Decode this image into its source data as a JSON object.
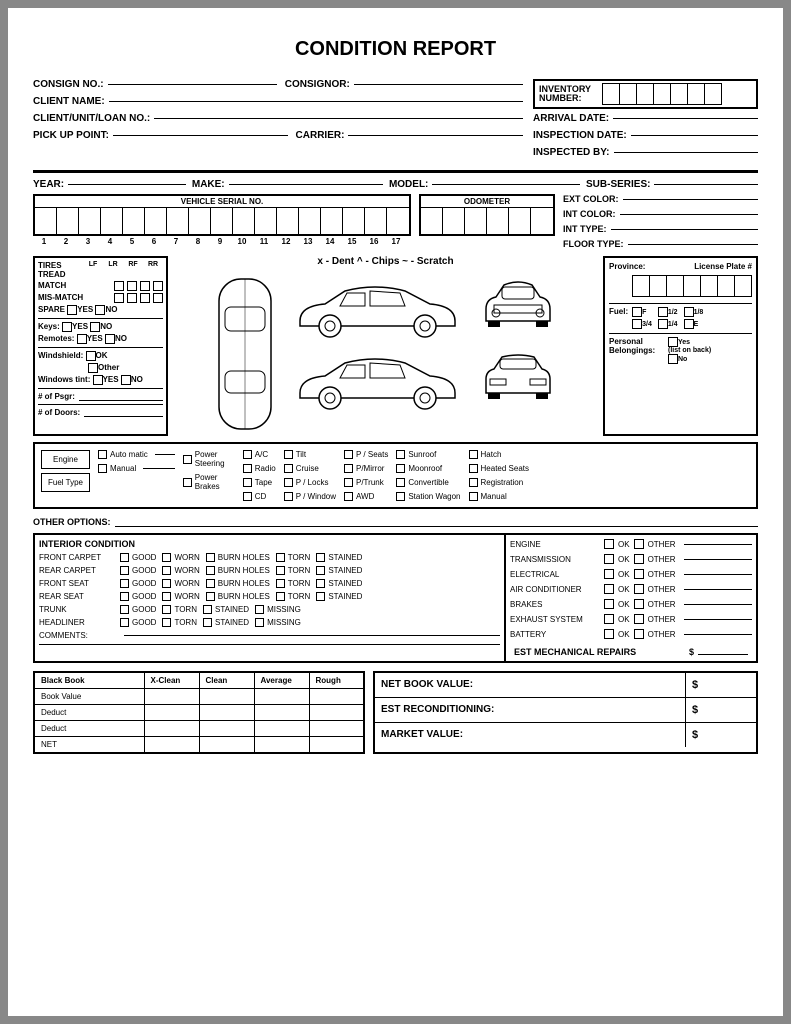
{
  "title": "CONDITION REPORT",
  "header_left": {
    "consign_no": "CONSIGN NO.:",
    "consignor": "CONSIGNOR:",
    "client_name": "CLIENT NAME:",
    "client_unit": "CLIENT/UNIT/LOAN NO.:",
    "pickup": "PICK UP POINT:",
    "carrier": "CARRIER:"
  },
  "header_right": {
    "inventory": "INVENTORY NUMBER:",
    "arrival": "ARRIVAL DATE:",
    "inspection": "INSPECTION DATE:",
    "inspected_by": "INSPECTED BY:",
    "inv_cells": 7
  },
  "vehicle": {
    "year": "YEAR:",
    "make": "MAKE:",
    "model": "MODEL:",
    "subseries": "SUB-SERIES:",
    "serial_label": "VEHICLE SERIAL NO.",
    "serial_count": 17,
    "odometer_label": "ODOMETER",
    "odometer_count": 6,
    "ext_color": "EXT COLOR:",
    "int_color": "INT COLOR:",
    "int_type": "INT TYPE:",
    "floor_type": "FLOOR TYPE:"
  },
  "tires": {
    "title": "TIRES",
    "cols": [
      "LF",
      "LR",
      "RF",
      "RR"
    ],
    "tread": "TREAD",
    "match": "MATCH",
    "mismatch": "MIS-MATCH",
    "spare": "SPARE",
    "yes": "YES",
    "no": "NO",
    "keys": "Keys:",
    "remotes": "Remotes:",
    "windshield": "Windshield:",
    "ok": "OK",
    "other": "Other",
    "tint": "Windows tint:",
    "psgr": "# of Psgr:",
    "doors": "# of Doors:"
  },
  "legend": "x - Dent    ^ - Chips    ~ - Scratch",
  "plate": {
    "province": "Province:",
    "license": "License Plate #",
    "plate_cells": 7,
    "fuel": "Fuel:",
    "fuel_opts": [
      "F",
      "1/2",
      "1/8",
      "3/4",
      "1/4",
      "E"
    ],
    "belongings": "Personal Belongings:",
    "yes": "Yes",
    "list": "(list on back)",
    "no": "No"
  },
  "options_box": {
    "engine": "Engine",
    "fuel_type": "Fuel Type",
    "auto": "Auto matic",
    "manual": "Manual",
    "ps": "Power Steering",
    "pb": "Power Brakes",
    "col1": [
      "A/C",
      "Radio",
      "Tape",
      "CD"
    ],
    "col2": [
      "Tilt",
      "Cruise",
      "P / Locks",
      "P / Window"
    ],
    "col3": [
      "P / Seats",
      "P/Mirror",
      "P/Trunk",
      "AWD"
    ],
    "col4": [
      "Sunroof",
      "Moonroof",
      "Convertible",
      "Station Wagon"
    ],
    "col5": [
      "Hatch",
      "Heated Seats",
      "Registration",
      "Manual"
    ]
  },
  "other_options": "OTHER OPTIONS:",
  "interior": {
    "title": "INTERIOR CONDITION",
    "rows": [
      {
        "lbl": "FRONT CARPET",
        "opts": [
          "GOOD",
          "WORN",
          "BURN HOLES",
          "TORN",
          "STAINED"
        ]
      },
      {
        "lbl": "REAR CARPET",
        "opts": [
          "GOOD",
          "WORN",
          "BURN HOLES",
          "TORN",
          "STAINED"
        ]
      },
      {
        "lbl": "FRONT SEAT",
        "opts": [
          "GOOD",
          "WORN",
          "BURN HOLES",
          "TORN",
          "STAINED"
        ]
      },
      {
        "lbl": "REAR SEAT",
        "opts": [
          "GOOD",
          "WORN",
          "BURN HOLES",
          "TORN",
          "STAINED"
        ]
      },
      {
        "lbl": "TRUNK",
        "opts": [
          "GOOD",
          "TORN",
          "STAINED",
          "MISSING"
        ]
      },
      {
        "lbl": "HEADLINER",
        "opts": [
          "GOOD",
          "TORN",
          "STAINED",
          "MISSING"
        ]
      }
    ],
    "comments": "COMMENTS:"
  },
  "mechanical": {
    "rows": [
      "ENGINE",
      "TRANSMISSION",
      "ELECTRICAL",
      "AIR CONDITIONER",
      "BRAKES",
      "EXHAUST SYSTEM",
      "BATTERY"
    ],
    "ok": "OK",
    "other": "OTHER",
    "est": "EST MECHANICAL REPAIRS",
    "dollar": "$"
  },
  "blackbook": {
    "hdr": [
      "Black Book",
      "X-Clean",
      "Clean",
      "Average",
      "Rough"
    ],
    "rows": [
      "Book Value",
      "Deduct",
      "Deduct",
      "NET"
    ]
  },
  "values": {
    "net_book": "NET BOOK VALUE:",
    "recon": "EST RECONDITIONING:",
    "market": "MARKET VALUE:",
    "dollar": "$"
  },
  "colors": {
    "border": "#000000",
    "bg": "#ffffff",
    "page_bg": "#888888"
  }
}
